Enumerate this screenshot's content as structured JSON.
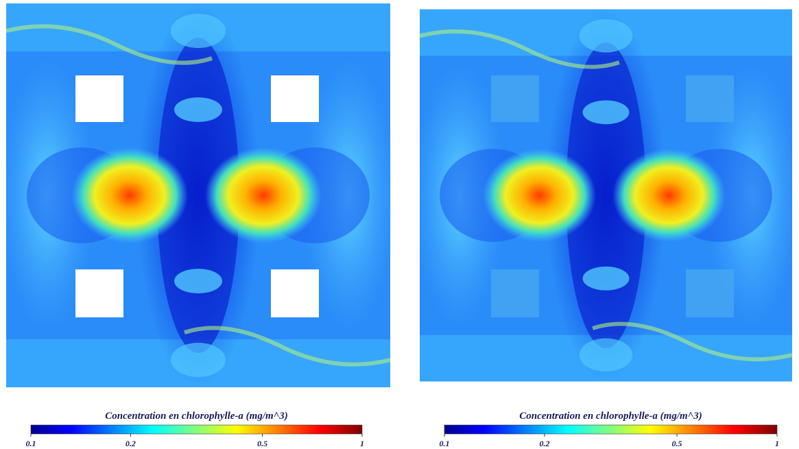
{
  "panels": [
    {
      "colorbar": {
        "title": "Concentration en chlorophylle-a (mg/m^3)",
        "lim": [
          0.1,
          1
        ],
        "ticks": [
          0.1,
          0.2,
          0.5,
          1
        ],
        "log": true
      }
    },
    {
      "colorbar": {
        "title": "Concentration en chlorophylle-a (mg/m^3)",
        "lim": [
          0.1,
          1
        ],
        "ticks": [
          0.1,
          0.2,
          0.5,
          1
        ],
        "log": true
      }
    }
  ]
}
